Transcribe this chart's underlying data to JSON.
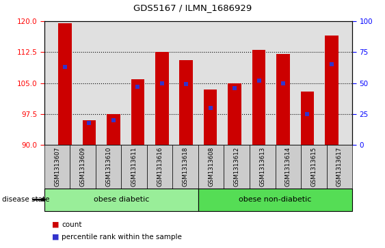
{
  "title": "GDS5167 / ILMN_1686929",
  "samples": [
    "GSM1313607",
    "GSM1313609",
    "GSM1313610",
    "GSM1313611",
    "GSM1313616",
    "GSM1313618",
    "GSM1313608",
    "GSM1313612",
    "GSM1313613",
    "GSM1313614",
    "GSM1313615",
    "GSM1313617"
  ],
  "count_values": [
    119.5,
    96.0,
    97.5,
    106.0,
    112.5,
    110.5,
    103.5,
    105.0,
    113.0,
    112.0,
    103.0,
    116.5
  ],
  "percentile_values": [
    63,
    18,
    20,
    47,
    50,
    49,
    30,
    46,
    52,
    50,
    25,
    65
  ],
  "ylim_left": [
    90,
    120
  ],
  "ylim_right": [
    0,
    100
  ],
  "yticks_left": [
    90,
    97.5,
    105,
    112.5,
    120
  ],
  "yticks_right": [
    0,
    25,
    50,
    75,
    100
  ],
  "bar_color": "#cc0000",
  "percentile_color": "#3333cc",
  "bar_width": 0.55,
  "group1_label": "obese diabetic",
  "group1_color": "#99ee99",
  "group2_label": "obese non-diabetic",
  "group2_color": "#55dd55",
  "group_label": "disease state",
  "plot_bg_color": "#e0e0e0",
  "xtick_bg_color": "#cccccc",
  "legend_count_color": "#cc0000",
  "legend_pct_color": "#3333cc",
  "legend_count_label": "count",
  "legend_pct_label": "percentile rank within the sample"
}
